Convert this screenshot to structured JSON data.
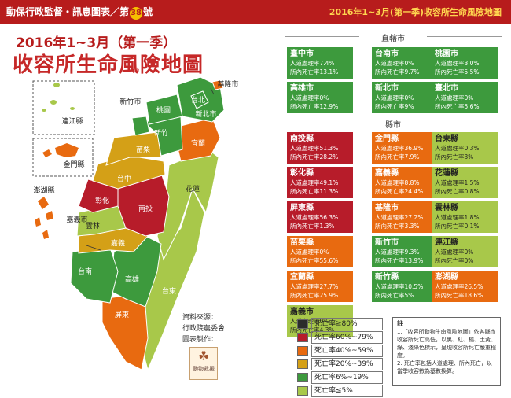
{
  "header": {
    "left_prefix": "動保行政監督・訊息圖表／第",
    "issue_no": "38",
    "left_suffix": "號",
    "right": "2016年1~3月(第一季)收容所生命風險地圖"
  },
  "title": {
    "line1": "2016年1~3月（第一季）",
    "line2": "收容所生命風險地圖"
  },
  "map_labels": {
    "keelung": "基隆市",
    "taipei": "台北",
    "newtaipei": "新北市",
    "taoyuan": "桃園",
    "hsinchu_city": "新竹市",
    "hsinchu": "新竹",
    "yilan": "宜蘭",
    "miaoli": "苗栗",
    "taichung": "台中",
    "hualien": "花蓮",
    "changhua": "彰化",
    "nantou": "南投",
    "yunlin": "雲林",
    "chiayi_city": "嘉義市",
    "chiayi": "嘉義",
    "tainan": "台南",
    "kaohsiung": "高雄",
    "taitung": "台東",
    "pingtung": "屏東",
    "lienchiang": "連江縣",
    "kinmen": "金門縣",
    "penghu": "澎湖縣"
  },
  "source": {
    "line1": "資料來源：",
    "line2": "行政院農委會",
    "line3": "圖表製作：",
    "logo": "動物救援"
  },
  "sections": {
    "municipal": "直轄市",
    "county": "縣市"
  },
  "cards": {
    "municipal": [
      {
        "name": "臺中市",
        "line1": "人道處理率7.4%",
        "line2": "所內死亡率13.1%",
        "color": "#3d9a3d"
      },
      {
        "name": "台南市",
        "line1": "人道處理率0%",
        "line2": "所內死亡率9.7%",
        "color": "#3d9a3d"
      },
      {
        "name": "桃園市",
        "line1": "人道處理率3.0%",
        "line2": "所內死亡率5.5%",
        "color": "#3d9a3d"
      },
      {
        "name": "高雄市",
        "line1": "人道處理率0%",
        "line2": "所內死亡率12.9%",
        "color": "#3d9a3d"
      },
      {
        "name": "新北市",
        "line1": "人道處理率0%",
        "line2": "所內死亡率9%",
        "color": "#3d9a3d"
      },
      {
        "name": "臺北市",
        "line1": "人道處理率0%",
        "line2": "所內死亡率5.6%",
        "color": "#3d9a3d"
      }
    ],
    "county": [
      {
        "name": "南投縣",
        "line1": "人道處理率51.3%",
        "line2": "所內死亡率28.2%",
        "color": "#b71c2a"
      },
      {
        "name": "金門縣",
        "line1": "人道處理率36.9%",
        "line2": "所內死亡率7.9%",
        "color": "#e86a10"
      },
      {
        "name": "台東縣",
        "line1": "人道處理率0.3%",
        "line2": "所內死亡率3%",
        "color": "#a8c84a",
        "dark": true
      },
      {
        "name": "彰化縣",
        "line1": "人道處理率49.1%",
        "line2": "所內死亡率11.3%",
        "color": "#b71c2a"
      },
      {
        "name": "嘉義縣",
        "line1": "人道處理率8.8%",
        "line2": "所內死亡率24.4%",
        "color": "#e86a10"
      },
      {
        "name": "花蓮縣",
        "line1": "人道處理率1.5%",
        "line2": "所內死亡率0.8%",
        "color": "#a8c84a",
        "dark": true
      },
      {
        "name": "屏東縣",
        "line1": "人道處理率56.3%",
        "line2": "所內死亡率1.3%",
        "color": "#b71c2a"
      },
      {
        "name": "基隆市",
        "line1": "人道處理率27.2%",
        "line2": "所內死亡率3.3%",
        "color": "#e86a10"
      },
      {
        "name": "雲林縣",
        "line1": "人道處理率1.8%",
        "line2": "所內死亡率0.1%",
        "color": "#a8c84a",
        "dark": true
      },
      {
        "name": "苗栗縣",
        "line1": "人道處理率0%",
        "line2": "所內死亡率55.6%",
        "color": "#e86a10"
      },
      {
        "name": "新竹市",
        "line1": "人道處理率9.3%",
        "line2": "所內死亡率13.9%",
        "color": "#3d9a3d"
      },
      {
        "name": "連江縣",
        "line1": "人道處理率0%",
        "line2": "所內死亡率0%",
        "color": "#a8c84a",
        "dark": true
      },
      {
        "name": "宜蘭縣",
        "line1": "人道處理率27.7%",
        "line2": "所內死亡率25.9%",
        "color": "#e86a10"
      },
      {
        "name": "新竹縣",
        "line1": "人道處理率10.5%",
        "line2": "所內死亡率5%",
        "color": "#3d9a3d"
      },
      {
        "name": "澎湖縣",
        "line1": "人道處理率26.5%",
        "line2": "所內死亡率18.6%",
        "color": "#e86a10"
      },
      {
        "name": "嘉義市",
        "line1": "人道處理率0%",
        "line2": "所內死亡率4.3%",
        "color": "#a8c84a",
        "dark": true
      }
    ]
  },
  "legend": [
    {
      "label": "死亡率≧80%",
      "color": "#2b2b2b"
    },
    {
      "label": "死亡率60%~79%",
      "color": "#b71c2a"
    },
    {
      "label": "死亡率40%~59%",
      "color": "#e86a10"
    },
    {
      "label": "死亡率20%~39%",
      "color": "#d4a017"
    },
    {
      "label": "死亡率6%~19%",
      "color": "#3d9a3d"
    },
    {
      "label": "死亡率≦5%",
      "color": "#a8c84a"
    }
  ],
  "notes": {
    "heading": "註",
    "items": [
      "1.「收容所動物生命風險地圖」依各縣市收容所死亡高低，以黑、紅、橘、土黃、綠、淺綠色標示，呈現收容所死亡嚴重程度。",
      "2. 死亡率包括人道處理、所內死亡，以當季收容數為基數換算。"
    ]
  }
}
